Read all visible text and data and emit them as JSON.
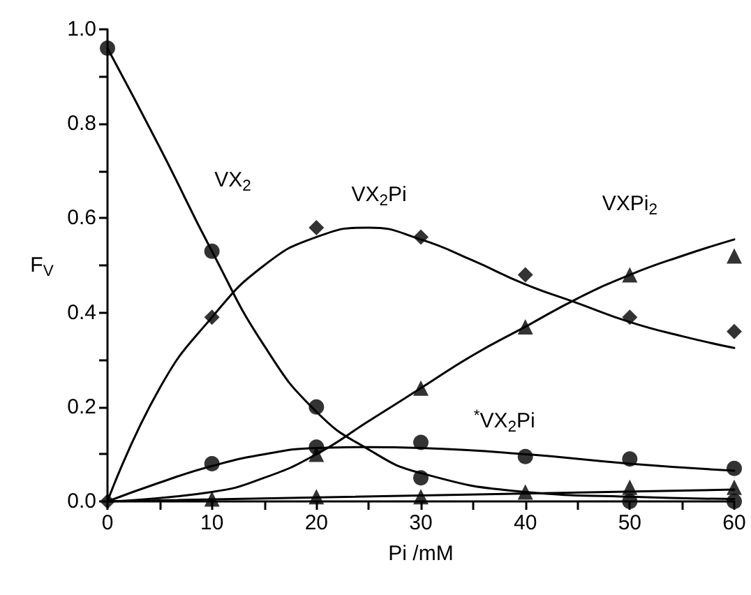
{
  "chart_data": {
    "type": "scatter",
    "xlabel": "Pi /mM",
    "ylabel": "F$_{V}$",
    "x": [
      0,
      10,
      20,
      30,
      40,
      50,
      60
    ],
    "xlim": [
      0,
      60
    ],
    "ylim": [
      0,
      1
    ],
    "xticks": [
      0,
      {
        "value": 5,
        "label": null
      },
      10,
      {
        "value": 15,
        "label": null
      },
      20,
      {
        "value": 25,
        "label": null
      },
      30,
      {
        "value": 35,
        "label": null
      },
      40,
      {
        "value": 45,
        "label": null
      },
      50,
      {
        "value": 55,
        "label": null
      },
      60
    ],
    "yticks": [
      {
        "value": 0,
        "label": "0.0"
      },
      {
        "value": 0.1,
        "label": null
      },
      {
        "value": 0.2,
        "label": "0.2"
      },
      {
        "value": 0.3,
        "label": null
      },
      {
        "value": 0.4,
        "label": "0.4"
      },
      {
        "value": 0.5,
        "label": null
      },
      {
        "value": 0.6,
        "label": "0.6"
      },
      {
        "value": 0.7,
        "label": null
      },
      {
        "value": 0.8,
        "label": "0.8"
      },
      {
        "value": 0.9,
        "label": null
      },
      {
        "value": 1,
        "label": "1.0"
      }
    ],
    "grid": false,
    "series": [
      {
        "marker": "circle",
        "color": "#000000",
        "values": [
          0.96,
          0.53,
          0.2,
          0.05,
          null,
          0.0,
          0.0
        ]
      },
      {
        "marker": "diamond",
        "color": "#000000",
        "values": [
          0.0,
          0.39,
          0.58,
          0.56,
          0.48,
          0.39,
          0.36
        ]
      },
      {
        "marker": "triangle",
        "color": "#000000",
        "values": [
          null,
          null,
          0.1,
          0.24,
          0.37,
          0.48,
          0.52
        ]
      },
      {
        "marker": "circle",
        "color": "#000000",
        "values": [
          null,
          0.08,
          0.115,
          0.125,
          0.095,
          0.09,
          0.07
        ]
      },
      {
        "marker": "triangle",
        "color": "#000000",
        "values": [
          null,
          0.005,
          0.01,
          0.01,
          0.02,
          0.03,
          0.03
        ]
      },
      {
        "type": "line",
        "marker": "none",
        "color": "#000000",
        "x": [
          0,
          5,
          10,
          15,
          20,
          25,
          30,
          40,
          50,
          60
        ],
        "values": [
          0.96,
          0.75,
          0.53,
          0.33,
          0.19,
          0.11,
          0.06,
          0.02,
          0.01,
          0.005
        ]
      },
      {
        "type": "line",
        "marker": "none",
        "color": "#000000",
        "x": [
          0,
          5,
          10,
          15,
          20,
          25,
          30,
          35,
          40,
          45,
          50,
          55,
          60
        ],
        "values": [
          0.0,
          0.24,
          0.39,
          0.5,
          0.56,
          0.58,
          0.555,
          0.51,
          0.46,
          0.42,
          0.38,
          0.35,
          0.325
        ]
      },
      {
        "type": "line",
        "marker": "none",
        "color": "#000000",
        "x": [
          0,
          10,
          15,
          20,
          25,
          30,
          35,
          40,
          45,
          50,
          55,
          60
        ],
        "values": [
          0.0,
          0.02,
          0.05,
          0.1,
          0.17,
          0.24,
          0.31,
          0.37,
          0.43,
          0.48,
          0.52,
          0.555
        ]
      },
      {
        "type": "line",
        "marker": "none",
        "color": "#000000",
        "x": [
          0,
          5,
          10,
          15,
          20,
          25,
          30,
          40,
          50,
          60
        ],
        "values": [
          0.0,
          0.04,
          0.075,
          0.1,
          0.113,
          0.115,
          0.113,
          0.1,
          0.08,
          0.065
        ]
      },
      {
        "type": "line",
        "marker": "none",
        "color": "#000000",
        "x": [
          0,
          60
        ],
        "values": [
          0.0,
          0.025
        ]
      }
    ],
    "annotations": [
      "VX$_{2}$",
      "VX$_{2}$Pi",
      "VXPi$_{2}$",
      "$^{*}$VX$_{2}$Pi"
    ]
  }
}
